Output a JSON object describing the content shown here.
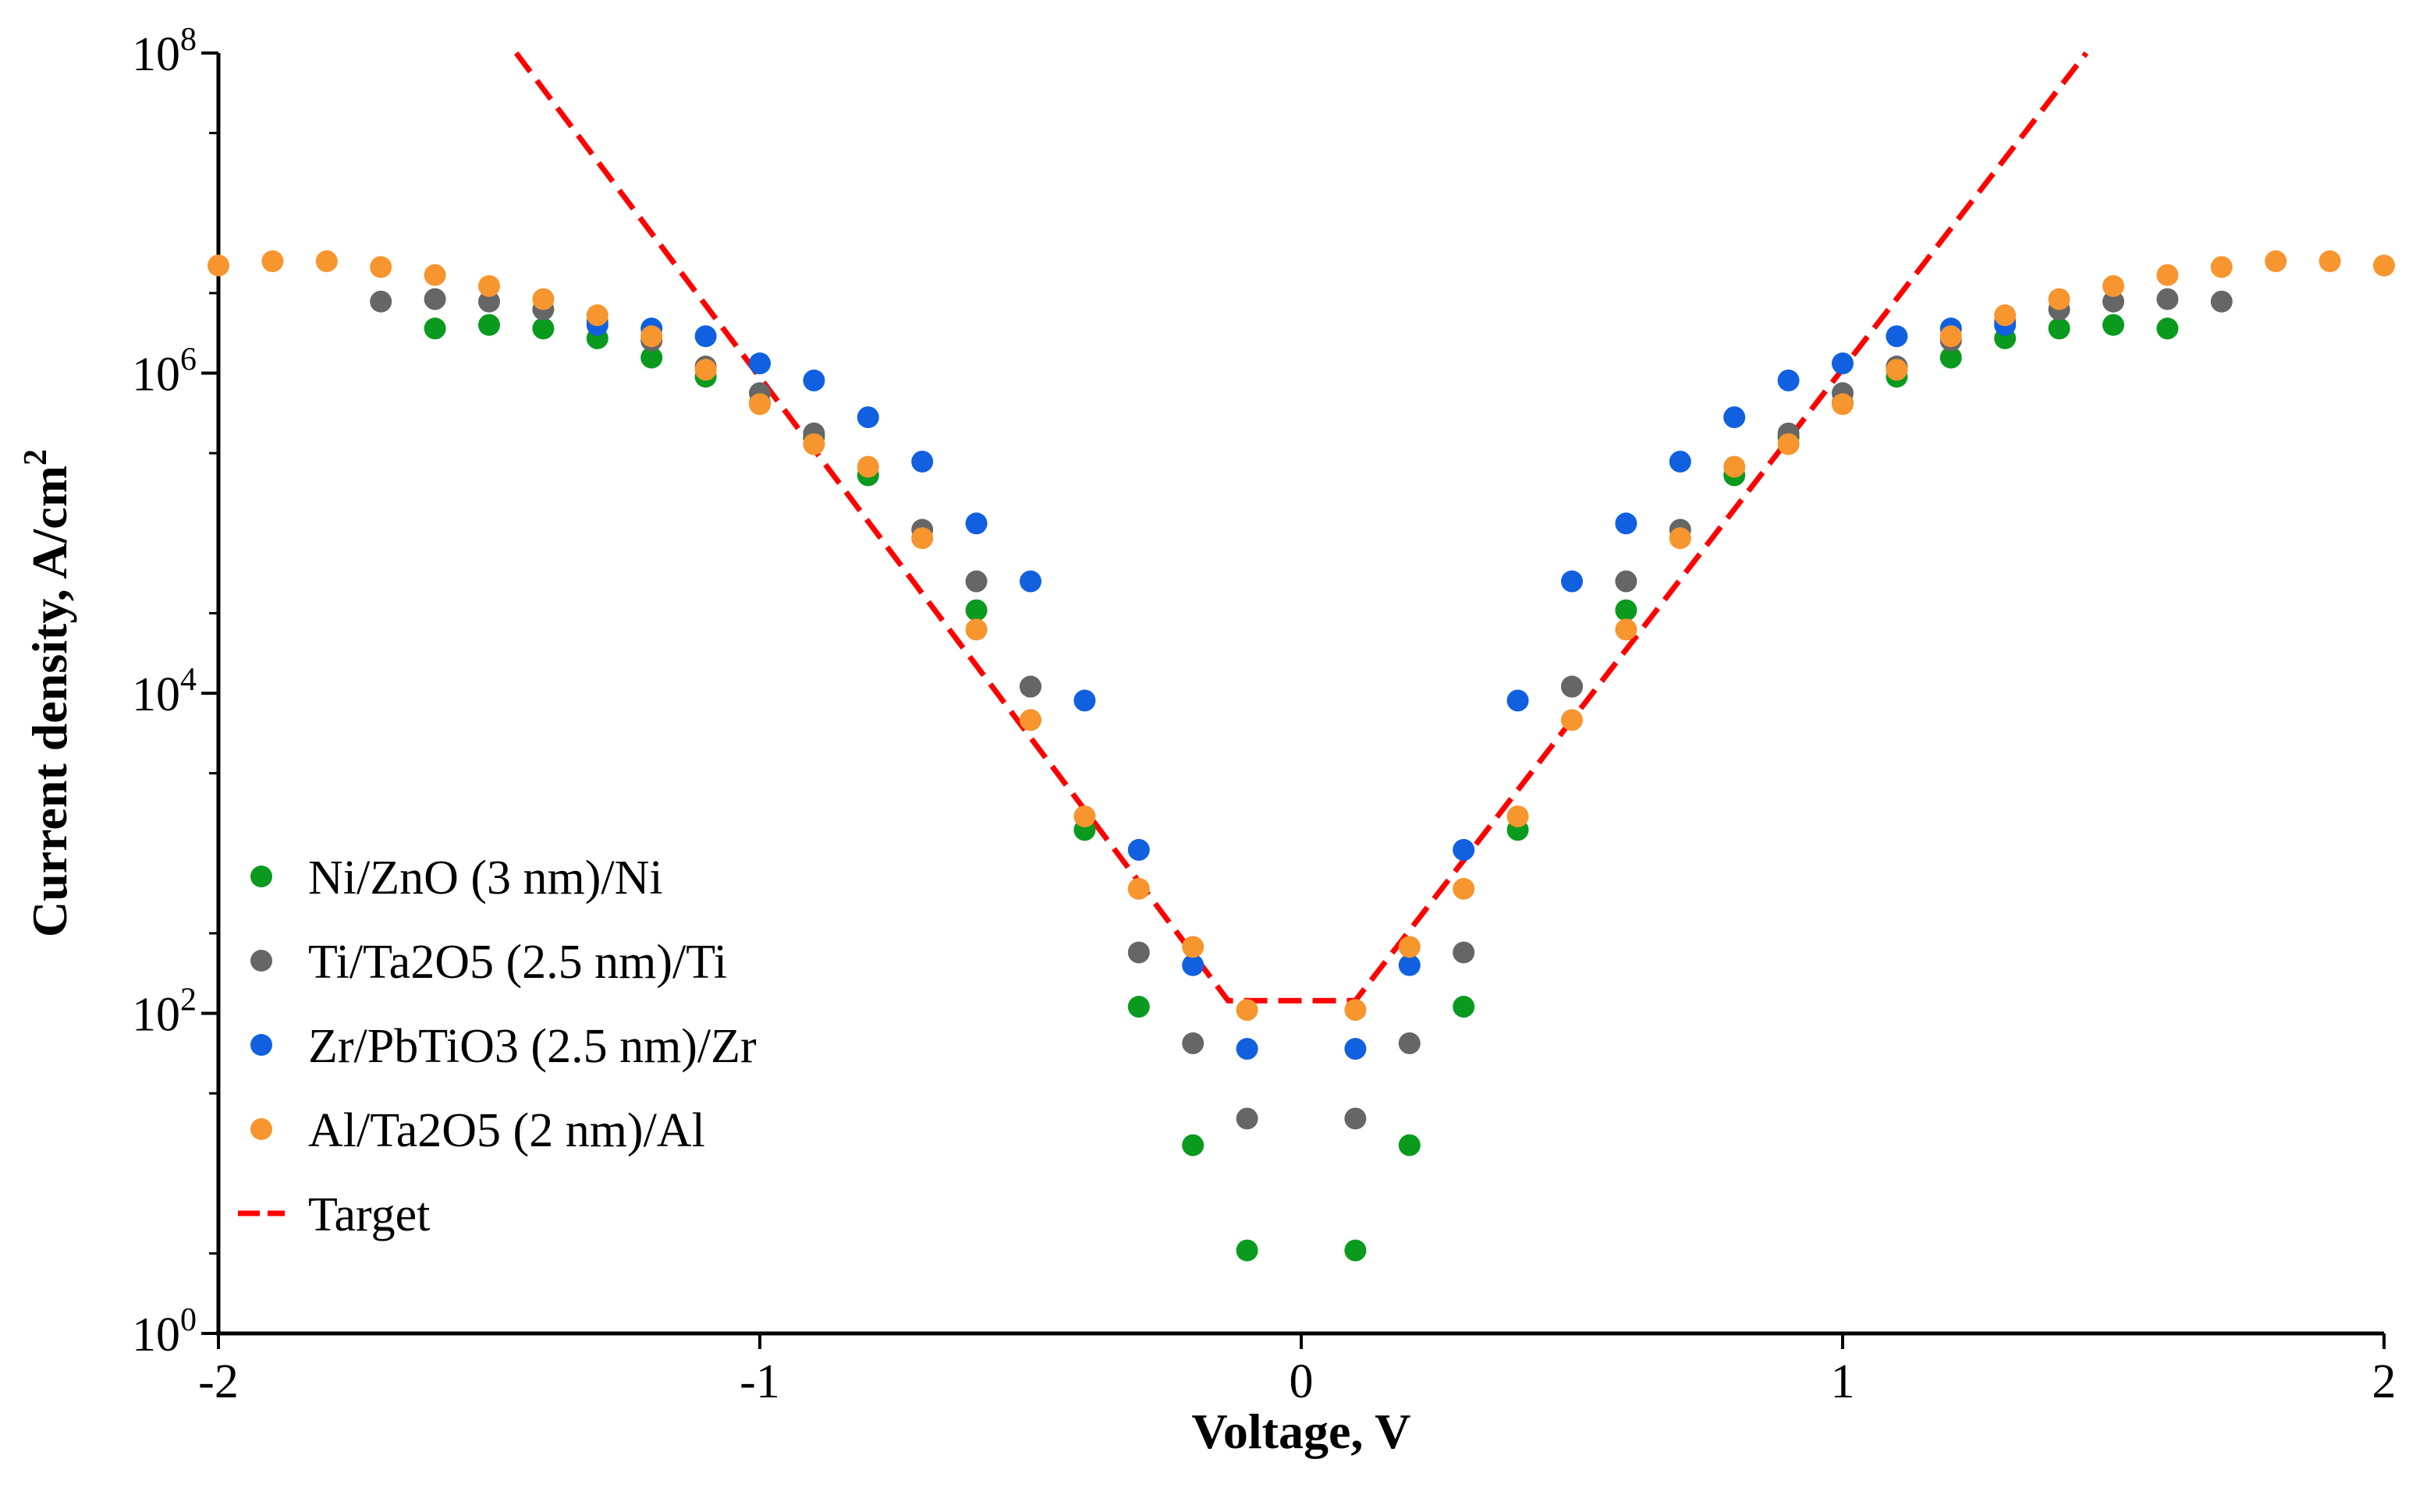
{
  "chart_data": {
    "type": "scatter",
    "title": "",
    "xlabel": "Voltage, V",
    "ylabel_main": "Current density, A/cm",
    "ylabel_sup": "2",
    "xlim": [
      -2,
      2
    ],
    "ylim": [
      1,
      100000000
    ],
    "yscale": "log",
    "grid": false,
    "legend_position": "bottom-left",
    "x_ticks": [
      {
        "value": -2,
        "label": "-2"
      },
      {
        "value": -1,
        "label": "-1"
      },
      {
        "value": 0,
        "label": "0"
      },
      {
        "value": 1,
        "label": "1"
      },
      {
        "value": 2,
        "label": "2"
      }
    ],
    "y_ticks": [
      {
        "value": 1,
        "base": "10",
        "exp": "0"
      },
      {
        "value": 100,
        "base": "10",
        "exp": "2"
      },
      {
        "value": 10000,
        "base": "10",
        "exp": "4"
      },
      {
        "value": 1000000,
        "base": "10",
        "exp": "6"
      },
      {
        "value": 100000000,
        "base": "10",
        "exp": "8"
      }
    ],
    "series": [
      {
        "name": "Ni/ZnO (3 nm)/Ni",
        "color": "#0a9a1e",
        "x": [
          -1.6,
          -1.5,
          -1.4,
          -1.3,
          -1.2,
          -1.1,
          -1.0,
          -0.9,
          -0.8,
          -0.6,
          -0.5,
          -0.4,
          -0.3,
          -0.2,
          -0.1,
          0.1,
          0.2,
          0.3,
          0.4,
          0.5,
          0.6,
          0.8,
          0.9,
          1.0,
          1.1,
          1.2,
          1.3,
          1.4,
          1.5,
          1.6
        ],
        "y": [
          1900000,
          2000000,
          1900000,
          1650000,
          1250000,
          950000,
          650000,
          400000,
          230000,
          33000,
          11000,
          1400,
          110,
          15,
          3.3,
          3.3,
          15,
          110,
          1400,
          11000,
          33000,
          230000,
          400000,
          650000,
          950000,
          1250000,
          1650000,
          1900000,
          2000000,
          1900000
        ]
      },
      {
        "name": "Ti/Ta2O5 (2.5 nm)/Ti",
        "color": "#666666",
        "x": [
          -1.7,
          -1.6,
          -1.5,
          -1.4,
          -1.3,
          -1.2,
          -1.1,
          -1.0,
          -0.9,
          -0.7,
          -0.6,
          -0.5,
          -0.3,
          -0.2,
          -0.1,
          0.1,
          0.2,
          0.3,
          0.5,
          0.6,
          0.7,
          0.9,
          1.0,
          1.1,
          1.2,
          1.3,
          1.4,
          1.5,
          1.6,
          1.7
        ],
        "y": [
          2800000,
          2900000,
          2800000,
          2500000,
          2100000,
          1600000,
          1100000,
          750000,
          420000,
          105000,
          50000,
          11000,
          240,
          65,
          22,
          22,
          65,
          240,
          11000,
          50000,
          105000,
          420000,
          750000,
          1100000,
          1600000,
          2100000,
          2500000,
          2800000,
          2900000,
          2800000
        ]
      },
      {
        "name": "Zr/PbTiO3 (2.5 nm)/Zr",
        "color": "#1060e0",
        "x": [
          -1.3,
          -1.2,
          -1.1,
          -1.0,
          -0.9,
          -0.8,
          -0.7,
          -0.6,
          -0.5,
          -0.4,
          -0.3,
          -0.2,
          -0.1,
          0.1,
          0.2,
          0.3,
          0.4,
          0.5,
          0.6,
          0.7,
          0.8,
          0.9,
          1.0,
          1.1,
          1.2,
          1.3
        ],
        "y": [
          2000000,
          1900000,
          1700000,
          1150000,
          900000,
          530000,
          280000,
          115000,
          50000,
          9000,
          1050,
          200,
          60,
          60,
          200,
          1050,
          9000,
          50000,
          115000,
          280000,
          530000,
          900000,
          1150000,
          1700000,
          1900000,
          2000000
        ]
      },
      {
        "name": "Al/Ta2O5 (2 nm)/Al",
        "color": "#f7952e",
        "x": [
          -2.0,
          -1.9,
          -1.8,
          -1.7,
          -1.6,
          -1.5,
          -1.4,
          -1.3,
          -1.2,
          -1.1,
          -1.0,
          -0.9,
          -0.8,
          -0.7,
          -0.6,
          -0.5,
          -0.4,
          -0.3,
          -0.2,
          -0.1,
          0.1,
          0.2,
          0.3,
          0.4,
          0.5,
          0.6,
          0.7,
          0.8,
          0.9,
          1.0,
          1.1,
          1.2,
          1.3,
          1.4,
          1.5,
          1.6,
          1.7,
          1.8,
          1.9,
          2.0
        ],
        "y": [
          4700000,
          5000000,
          5000000,
          4600000,
          4100000,
          3500000,
          2900000,
          2300000,
          1700000,
          1050000,
          640000,
          360000,
          260000,
          93000,
          25000,
          6800,
          1700,
          600,
          260,
          105,
          105,
          260,
          600,
          1700,
          6800,
          25000,
          93000,
          260000,
          360000,
          640000,
          1050000,
          1700000,
          2300000,
          2900000,
          3500000,
          4100000,
          4600000,
          5000000,
          5000000,
          4700000
        ]
      }
    ],
    "target": {
      "name": "Target",
      "color": "#ff0000",
      "x": [
        -1.45,
        -0.135,
        0.1,
        1.45
      ],
      "y": [
        100000000,
        120,
        120,
        100000000
      ]
    }
  }
}
